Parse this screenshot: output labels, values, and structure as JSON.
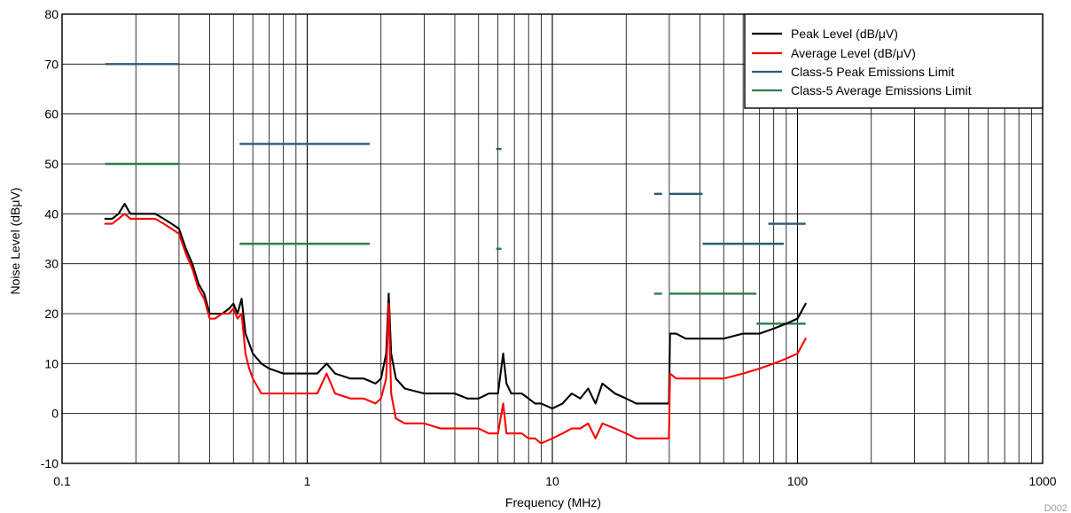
{
  "chart_data": {
    "type": "line",
    "xlabel": "Frequency (MHz)",
    "ylabel": "Noise Level (dBμV)",
    "xscale": "log",
    "xlim": [
      0.1,
      1000
    ],
    "ylim": [
      -10,
      80
    ],
    "x_ticks": [
      0.1,
      1,
      10,
      100,
      1000
    ],
    "x_tick_labels": [
      "0.1",
      "1",
      "10",
      "100",
      "1000"
    ],
    "y_ticks": [
      -10,
      0,
      10,
      20,
      30,
      40,
      50,
      60,
      70,
      80
    ],
    "y_tick_labels": [
      "-10",
      "0",
      "10",
      "20",
      "30",
      "40",
      "50",
      "60",
      "70",
      "80"
    ],
    "grid": true,
    "legend_position": "top-right",
    "watermark": "D002",
    "series": [
      {
        "name": "Peak Level (dB/μV)",
        "color": "#000000",
        "x": [
          0.15,
          0.16,
          0.17,
          0.18,
          0.19,
          0.2,
          0.22,
          0.24,
          0.26,
          0.28,
          0.3,
          0.32,
          0.34,
          0.36,
          0.38,
          0.4,
          0.42,
          0.45,
          0.48,
          0.5,
          0.52,
          0.54,
          0.56,
          0.58,
          0.6,
          0.65,
          0.7,
          0.8,
          0.9,
          1.0,
          1.1,
          1.2,
          1.3,
          1.5,
          1.7,
          1.9,
          2.0,
          2.1,
          2.15,
          2.2,
          2.3,
          2.5,
          3.0,
          3.5,
          4.0,
          4.5,
          5.0,
          5.5,
          6.0,
          6.3,
          6.5,
          6.8,
          7.0,
          7.5,
          8.0,
          8.5,
          9.0,
          10.0,
          11.0,
          12.0,
          13.0,
          14.0,
          15.0,
          16.0,
          18.0,
          20.0,
          22.0,
          25.0,
          28.0,
          29.9,
          30.2,
          32.0,
          35.0,
          40.0,
          50.0,
          60.0,
          70.0,
          80.0,
          90.0,
          100.0,
          108.0
        ],
        "y": [
          39,
          39,
          40,
          42,
          40,
          40,
          40,
          40,
          39,
          38,
          37,
          33,
          30,
          26,
          24,
          20,
          20,
          20,
          21,
          22,
          20,
          23,
          16,
          14,
          12,
          10,
          9,
          8,
          8,
          8,
          8,
          10,
          8,
          7,
          7,
          6,
          7,
          12,
          24,
          12,
          7,
          5,
          4,
          4,
          4,
          3,
          3,
          4,
          4,
          12,
          6,
          4,
          4,
          4,
          3,
          2,
          2,
          1,
          2,
          4,
          3,
          5,
          2,
          6,
          4,
          3,
          2,
          2,
          2,
          2,
          16,
          16,
          15,
          15,
          15,
          16,
          16,
          17,
          18,
          19,
          22
        ]
      },
      {
        "name": "Average Level (dB/μV)",
        "color": "#ff0000",
        "x": [
          0.15,
          0.16,
          0.17,
          0.18,
          0.19,
          0.2,
          0.22,
          0.24,
          0.26,
          0.28,
          0.3,
          0.32,
          0.34,
          0.36,
          0.38,
          0.4,
          0.42,
          0.45,
          0.48,
          0.5,
          0.52,
          0.54,
          0.56,
          0.58,
          0.6,
          0.65,
          0.7,
          0.8,
          0.9,
          1.0,
          1.1,
          1.2,
          1.3,
          1.5,
          1.7,
          1.9,
          2.0,
          2.1,
          2.15,
          2.2,
          2.3,
          2.5,
          3.0,
          3.5,
          4.0,
          4.5,
          5.0,
          5.5,
          6.0,
          6.3,
          6.5,
          6.8,
          7.0,
          7.5,
          8.0,
          8.5,
          9.0,
          10.0,
          11.0,
          12.0,
          13.0,
          14.0,
          15.0,
          16.0,
          18.0,
          20.0,
          22.0,
          25.0,
          28.0,
          29.9,
          30.2,
          32.0,
          35.0,
          40.0,
          50.0,
          60.0,
          70.0,
          80.0,
          90.0,
          100.0,
          108.0
        ],
        "y": [
          38,
          38,
          39,
          40,
          39,
          39,
          39,
          39,
          38,
          37,
          36,
          32,
          29,
          25,
          23,
          19,
          19,
          20,
          20,
          21,
          19,
          20,
          12,
          9,
          7,
          4,
          4,
          4,
          4,
          4,
          4,
          8,
          4,
          3,
          3,
          2,
          3,
          7,
          22,
          4,
          -1,
          -2,
          -2,
          -3,
          -3,
          -3,
          -3,
          -4,
          -4,
          2,
          -4,
          -4,
          -4,
          -4,
          -5,
          -5,
          -6,
          -5,
          -4,
          -3,
          -3,
          -2,
          -5,
          -2,
          -3,
          -4,
          -5,
          -5,
          -5,
          -5,
          8,
          7,
          7,
          7,
          7,
          8,
          9,
          10,
          11,
          12,
          15
        ]
      },
      {
        "name": "Class-5 Peak Emissions Limit",
        "color": "#2d5a78",
        "segments": [
          {
            "x": [
              0.15,
              0.3
            ],
            "y": [
              70,
              70
            ]
          },
          {
            "x": [
              0.53,
              1.8
            ],
            "y": [
              54,
              54
            ]
          },
          {
            "x": [
              5.9,
              6.2
            ],
            "y": [
              53,
              53
            ]
          },
          {
            "x": [
              26,
              28
            ],
            "y": [
              44,
              44
            ]
          },
          {
            "x": [
              30,
              41
            ],
            "y": [
              44,
              44
            ]
          },
          {
            "x": [
              41,
              88
            ],
            "y": [
              34,
              34
            ]
          },
          {
            "x": [
              76,
              108
            ],
            "y": [
              38,
              38
            ]
          }
        ]
      },
      {
        "name": "Class-5 Average Emissions Limit",
        "color": "#2e7d4f",
        "segments": [
          {
            "x": [
              0.15,
              0.3
            ],
            "y": [
              50,
              50
            ]
          },
          {
            "x": [
              0.53,
              1.8
            ],
            "y": [
              34,
              34
            ]
          },
          {
            "x": [
              5.9,
              6.2
            ],
            "y": [
              33,
              33
            ]
          },
          {
            "x": [
              26,
              28
            ],
            "y": [
              24,
              24
            ]
          },
          {
            "x": [
              30,
              68
            ],
            "y": [
              24,
              24
            ]
          },
          {
            "x": [
              68,
              108
            ],
            "y": [
              18,
              18
            ]
          }
        ]
      }
    ]
  }
}
